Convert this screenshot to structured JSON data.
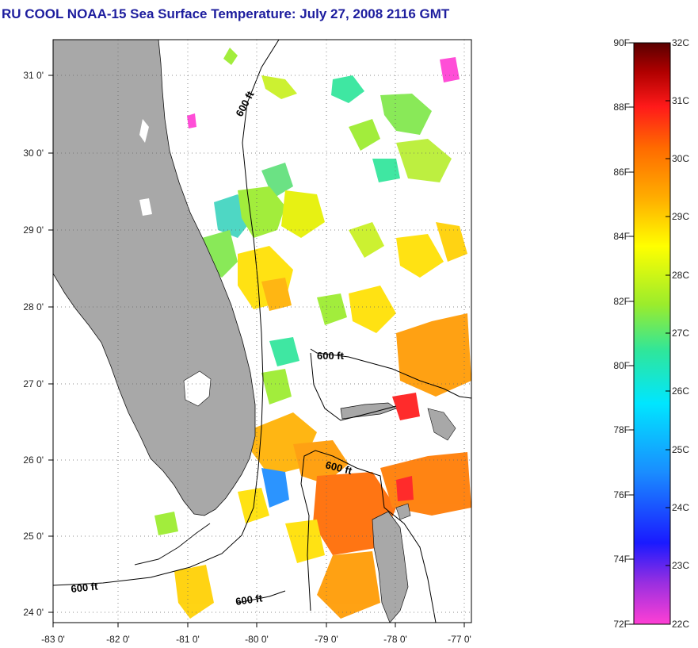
{
  "title": "RU COOL  NOAA-15  Sea Surface Temperature:  July 27, 2008 2116 GMT",
  "map": {
    "lon_ticks": [
      "-83 0'",
      "-82 0'",
      "-81 0'",
      "-80 0'",
      "-79 0'",
      "-78 0'",
      "-77 0'"
    ],
    "lat_ticks": [
      "31 0'",
      "30 0'",
      "29 0'",
      "28 0'",
      "27 0'",
      "26 0'",
      "25 0'",
      "24 0'"
    ],
    "isobath_labels": [
      "600 ft",
      "600 ft",
      "600 ft",
      "600 ft",
      "600 ft"
    ],
    "colors": {
      "land": "#a8a8a8",
      "grid": "#666666"
    }
  },
  "colorbar": {
    "f_labels": [
      "90F",
      "88F",
      "86F",
      "84F",
      "82F",
      "80F",
      "78F",
      "76F",
      "74F",
      "72F"
    ],
    "c_labels": [
      "32C",
      "31C",
      "30C",
      "29C",
      "28C",
      "27C",
      "26C",
      "25C",
      "24C",
      "23C",
      "22C"
    ],
    "stops": [
      "#ff3fd4",
      "#9b2fe0",
      "#1a1aff",
      "#1a8cff",
      "#00e6ff",
      "#2fe69b",
      "#9bec2c",
      "#ffff00",
      "#ffb000",
      "#ff6a00",
      "#ff1a1a",
      "#b00000",
      "#5a0000"
    ]
  }
}
